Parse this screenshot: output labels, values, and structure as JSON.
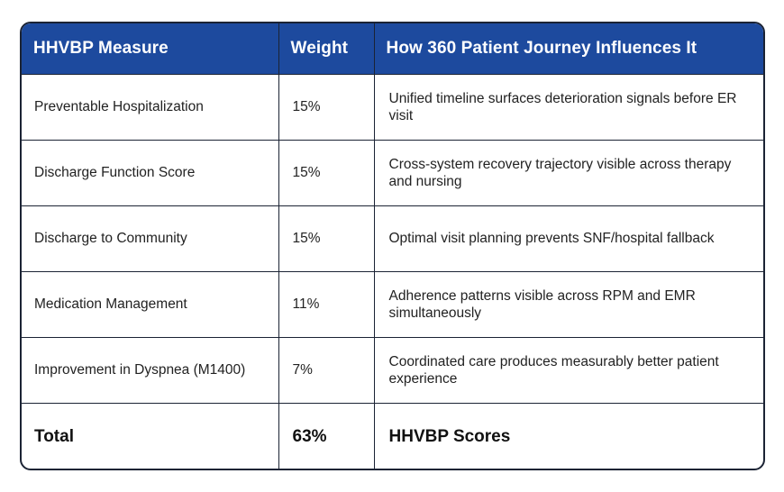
{
  "table": {
    "headers": {
      "measure": "HHVBP Measure",
      "weight": "Weight",
      "influence": "How 360 Patient Journey Influences It"
    },
    "rows": [
      {
        "measure": "Preventable Hospitalization",
        "weight": "15%",
        "influence": "Unified timeline surfaces deterioration signals before ER visit"
      },
      {
        "measure": "Discharge Function Score",
        "weight": "15%",
        "influence": "Cross-system recovery trajectory visible across therapy and nursing"
      },
      {
        "measure": "Discharge to Community",
        "weight": "15%",
        "influence": "Optimal visit planning prevents SNF/hospital fallback"
      },
      {
        "measure": "Medication Management",
        "weight": "11%",
        "influence": "Adherence patterns visible across RPM and EMR simultaneously"
      },
      {
        "measure": "Improvement in Dyspnea (M1400)",
        "weight": "7%",
        "influence": "Coordinated care produces measurably better patient experience"
      }
    ],
    "total": {
      "measure": "Total",
      "weight": "63%",
      "influence": "HHVBP Scores"
    }
  },
  "colors": {
    "header_background": "#1d4a9e",
    "header_text": "#ffffff",
    "border": "#1b2334"
  }
}
